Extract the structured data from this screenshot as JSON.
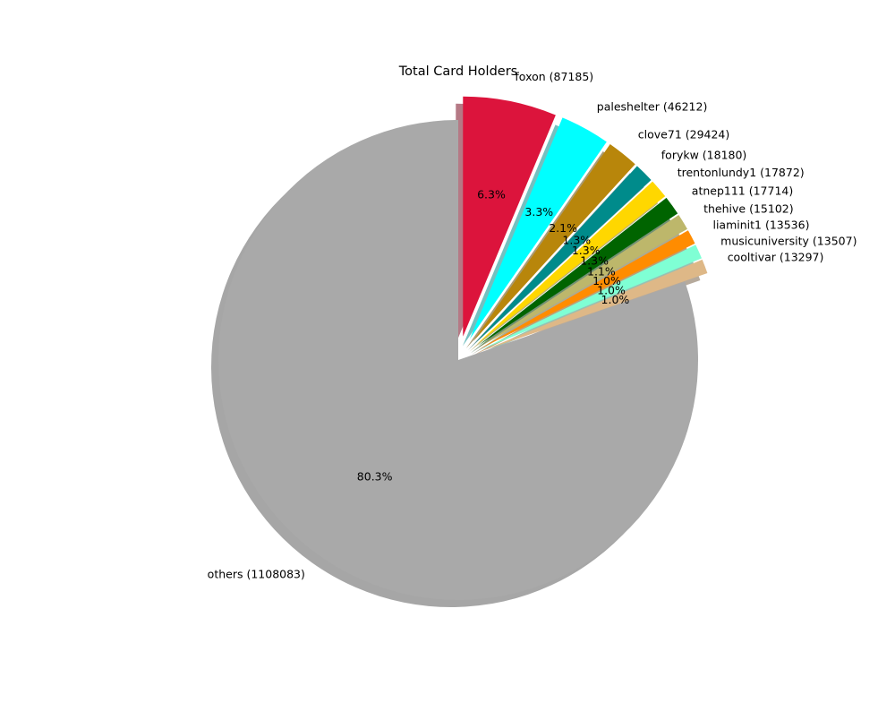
{
  "chart_data": {
    "type": "pie",
    "title": "Total Card Holders",
    "slices": [
      {
        "label": "foxon (87185)",
        "value": 87185,
        "pct_label": "6.3%",
        "color": "#dc143c",
        "explode": true
      },
      {
        "label": "paleshelter (46212)",
        "value": 46212,
        "pct_label": "3.3%",
        "color": "#00ffff",
        "explode": true
      },
      {
        "label": "clove71 (29424)",
        "value": 29424,
        "pct_label": "2.1%",
        "color": "#b8860b",
        "explode": true
      },
      {
        "label": "forykw (18180)",
        "value": 18180,
        "pct_label": "1.3%",
        "color": "#008b8b",
        "explode": true
      },
      {
        "label": "trentonlundy1 (17872)",
        "value": 17872,
        "pct_label": "1.3%",
        "color": "#ffd700",
        "explode": true
      },
      {
        "label": "atnep111 (17714)",
        "value": 17714,
        "pct_label": "1.3%",
        "color": "#006400",
        "explode": true
      },
      {
        "label": "thehive (15102)",
        "value": 15102,
        "pct_label": "1.1%",
        "color": "#bdb76b",
        "explode": true
      },
      {
        "label": "liaminit1 (13536)",
        "value": 13536,
        "pct_label": "1.0%",
        "color": "#ff8c00",
        "explode": true
      },
      {
        "label": "musicuniversity (13507)",
        "value": 13507,
        "pct_label": "1.0%",
        "color": "#7fffd4",
        "explode": true
      },
      {
        "label": "cooltivar (13297)",
        "value": 13297,
        "pct_label": "1.0%",
        "color": "#deb887",
        "explode": true
      },
      {
        "label": "others (1108083)",
        "value": 1108083,
        "pct_label": "80.3%",
        "color": "#a9a9a9",
        "explode": false
      }
    ],
    "start_angle_deg": 90,
    "direction": "clockwise",
    "shadow": true,
    "legend": "none"
  }
}
